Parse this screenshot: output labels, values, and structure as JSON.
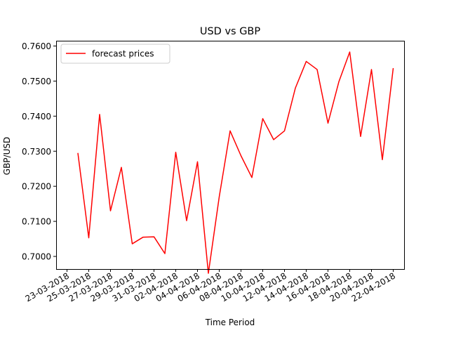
{
  "chart_data": {
    "type": "line",
    "title": "USD vs GBP",
    "xlabel": "Time Period",
    "ylabel": "GBP/USD",
    "legend_position": "top-left",
    "grid": false,
    "x_tick_labels": [
      "23-03-2018",
      "25-03-2018",
      "27-03-2018",
      "29-03-2018",
      "31-03-2018",
      "02-04-2018",
      "04-04-2018",
      "06-04-2018",
      "08-04-2018",
      "10-04-2018",
      "12-04-2018",
      "14-04-2018",
      "16-04-2018",
      "18-04-2018",
      "20-04-2018",
      "22-04-2018"
    ],
    "y_tick_labels": [
      "0.7000",
      "0.7100",
      "0.7200",
      "0.7300",
      "0.7400",
      "0.7500",
      "0.7600"
    ],
    "xlim": [
      "2018-03-22",
      "2018-04-23"
    ],
    "ylim": [
      0.6964,
      0.7615
    ],
    "series": [
      {
        "name": "forecast prices",
        "color": "#ff0000",
        "x": [
          "2018-03-24",
          "2018-03-25",
          "2018-03-26",
          "2018-03-27",
          "2018-03-28",
          "2018-03-29",
          "2018-03-30",
          "2018-03-31",
          "2018-04-01",
          "2018-04-02",
          "2018-04-03",
          "2018-04-04",
          "2018-04-05",
          "2018-04-06",
          "2018-04-07",
          "2018-04-08",
          "2018-04-09",
          "2018-04-10",
          "2018-04-11",
          "2018-04-12",
          "2018-04-13",
          "2018-04-14",
          "2018-04-15",
          "2018-04-16",
          "2018-04-17",
          "2018-04-18",
          "2018-04-19",
          "2018-04-20",
          "2018-04-21",
          "2018-04-22"
        ],
        "values": [
          0.7295,
          0.7053,
          0.7405,
          0.713,
          0.7254,
          0.7036,
          0.7055,
          0.7056,
          0.7008,
          0.7297,
          0.7102,
          0.727,
          0.6952,
          0.717,
          0.7358,
          0.7287,
          0.7225,
          0.7393,
          0.7333,
          0.7358,
          0.748,
          0.7556,
          0.7533,
          0.738,
          0.7498,
          0.7583,
          0.7342,
          0.7533,
          0.7276,
          0.7537
        ]
      }
    ]
  }
}
